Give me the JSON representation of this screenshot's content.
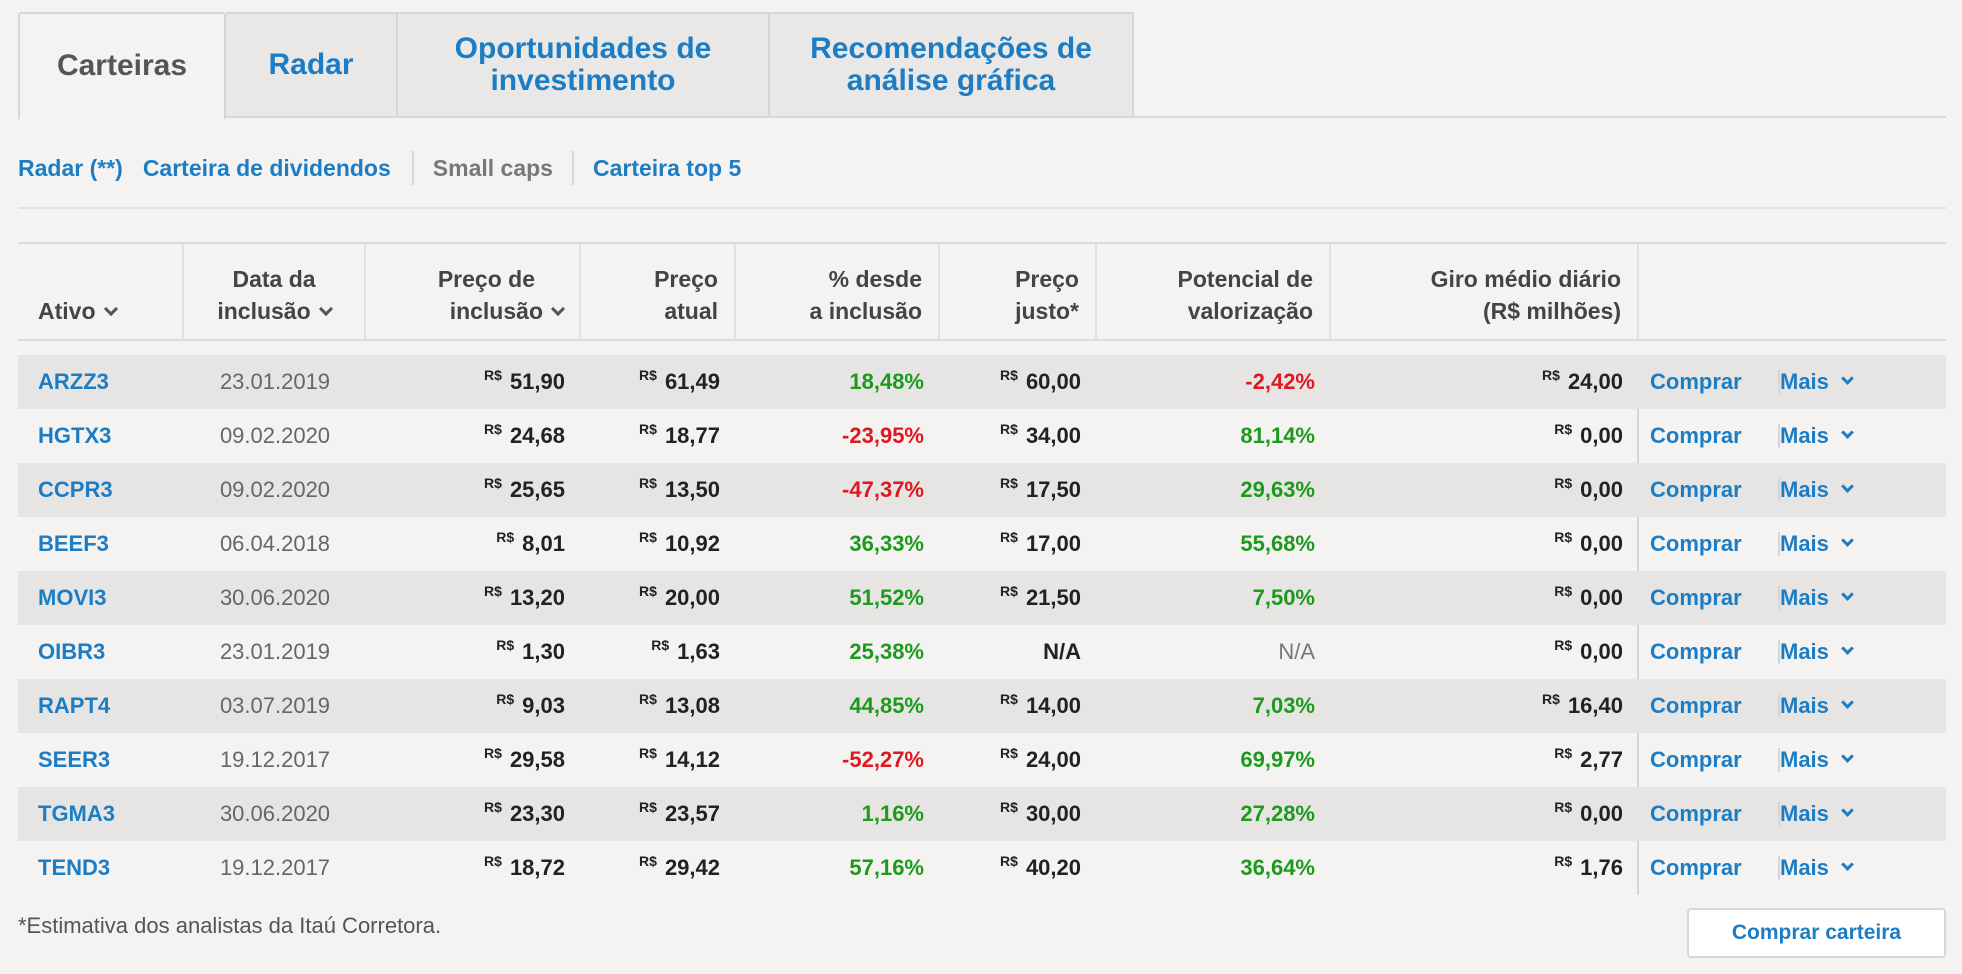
{
  "tabs": [
    {
      "label": "Carteiras",
      "active": true
    },
    {
      "label": "Radar",
      "active": false
    },
    {
      "label_line1": "Oportunidades de",
      "label_line2": "investimento",
      "active": false
    },
    {
      "label_line1": "Recomendações de",
      "label_line2": "análise gráfica",
      "active": false
    }
  ],
  "subnav": [
    {
      "label": "Radar (**)",
      "active": false
    },
    {
      "label": "Carteira de dividendos",
      "active": false
    },
    {
      "label": "Small caps",
      "active": true
    },
    {
      "label": "Carteira top 5",
      "active": false
    }
  ],
  "columns": {
    "ativo": "Ativo",
    "data_1": "Data da",
    "data_2": "inclusão",
    "preco_incl_1": "Preço de",
    "preco_incl_2": "inclusão",
    "preco_atual_1": "Preço",
    "preco_atual_2": "atual",
    "desde_1": "% desde",
    "desde_2": "a inclusão",
    "justo_1": "Preço",
    "justo_2": "justo*",
    "pot_1": "Potencial de",
    "pot_2": "valorização",
    "giro_1": "Giro médio diário",
    "giro_2": "(R$ milhões)"
  },
  "currency": "R$",
  "actions": {
    "buy": "Comprar",
    "more": "Mais"
  },
  "rows": [
    {
      "ticker": "ARZZ3",
      "date": "23.01.2019",
      "preco_inclusao": "51,90",
      "preco_atual": "61,49",
      "desde": "18,48%",
      "desde_sign": "pos",
      "preco_justo": "60,00",
      "potencial": "-2,42%",
      "pot_sign": "neg",
      "giro": "24,00"
    },
    {
      "ticker": "HGTX3",
      "date": "09.02.2020",
      "preco_inclusao": "24,68",
      "preco_atual": "18,77",
      "desde": "-23,95%",
      "desde_sign": "neg",
      "preco_justo": "34,00",
      "potencial": "81,14%",
      "pot_sign": "pos",
      "giro": "0,00"
    },
    {
      "ticker": "CCPR3",
      "date": "09.02.2020",
      "preco_inclusao": "25,65",
      "preco_atual": "13,50",
      "desde": "-47,37%",
      "desde_sign": "neg",
      "preco_justo": "17,50",
      "potencial": "29,63%",
      "pot_sign": "pos",
      "giro": "0,00"
    },
    {
      "ticker": "BEEF3",
      "date": "06.04.2018",
      "preco_inclusao": "8,01",
      "preco_atual": "10,92",
      "desde": "36,33%",
      "desde_sign": "pos",
      "preco_justo": "17,00",
      "potencial": "55,68%",
      "pot_sign": "pos",
      "giro": "0,00"
    },
    {
      "ticker": "MOVI3",
      "date": "30.06.2020",
      "preco_inclusao": "13,20",
      "preco_atual": "20,00",
      "desde": "51,52%",
      "desde_sign": "pos",
      "preco_justo": "21,50",
      "potencial": "7,50%",
      "pot_sign": "pos",
      "giro": "0,00"
    },
    {
      "ticker": "OIBR3",
      "date": "23.01.2019",
      "preco_inclusao": "1,30",
      "preco_atual": "1,63",
      "desde": "25,38%",
      "desde_sign": "pos",
      "preco_justo": "N/A",
      "potencial": "N/A",
      "pot_sign": "na",
      "giro": "0,00"
    },
    {
      "ticker": "RAPT4",
      "date": "03.07.2019",
      "preco_inclusao": "9,03",
      "preco_atual": "13,08",
      "desde": "44,85%",
      "desde_sign": "pos",
      "preco_justo": "14,00",
      "potencial": "7,03%",
      "pot_sign": "pos",
      "giro": "16,40"
    },
    {
      "ticker": "SEER3",
      "date": "19.12.2017",
      "preco_inclusao": "29,58",
      "preco_atual": "14,12",
      "desde": "-52,27%",
      "desde_sign": "neg",
      "preco_justo": "24,00",
      "potencial": "69,97%",
      "pot_sign": "pos",
      "giro": "2,77"
    },
    {
      "ticker": "TGMA3",
      "date": "30.06.2020",
      "preco_inclusao": "23,30",
      "preco_atual": "23,57",
      "desde": "1,16%",
      "desde_sign": "pos",
      "preco_justo": "30,00",
      "potencial": "27,28%",
      "pot_sign": "pos",
      "giro": "0,00"
    },
    {
      "ticker": "TEND3",
      "date": "19.12.2017",
      "preco_inclusao": "18,72",
      "preco_atual": "29,42",
      "desde": "57,16%",
      "desde_sign": "pos",
      "preco_justo": "40,20",
      "potencial": "36,64%",
      "pot_sign": "pos",
      "giro": "1,76"
    }
  ],
  "footnote": "*Estimativa dos analistas da Itaú Corretora.",
  "buy_portfolio": "Comprar carteira",
  "colors": {
    "link": "#1d7dc4",
    "positive": "#1c9a1c",
    "negative": "#e0171f",
    "row_shade": "#e7e5e4"
  }
}
